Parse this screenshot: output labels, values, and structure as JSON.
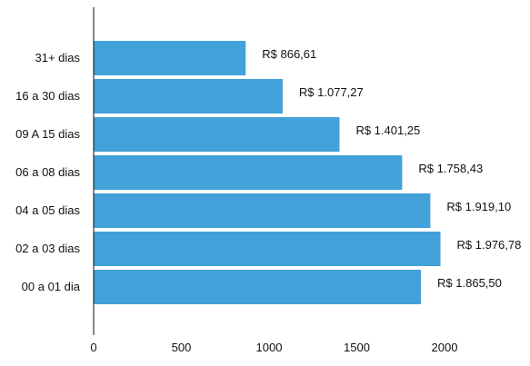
{
  "chart_data": {
    "type": "bar",
    "orientation": "horizontal",
    "categories": [
      "31+ dias",
      "16 a 30 dias",
      "09 A 15 dias",
      "06 a 08 dias",
      "04 a 05 dias",
      "02 a 03 dias",
      "00 a 01 dia"
    ],
    "values": [
      866.61,
      1077.27,
      1401.25,
      1758.43,
      1919.1,
      1976.78,
      1865.5
    ],
    "data_labels": [
      "R$ 866,61",
      "R$ 1.077,27",
      "R$ 1.401,25",
      "R$ 1.758,43",
      "R$ 1.919,10",
      "R$ 1.976,78",
      "R$ 1.865,50"
    ],
    "xlim": [
      0,
      2000
    ],
    "x_ticks": [
      0,
      500,
      1000,
      1500,
      2000
    ],
    "x_tick_labels": [
      "0",
      "500",
      "1000",
      "1500",
      "2000"
    ],
    "grid": false,
    "legend": "none",
    "bar_color": "#42a1d8"
  }
}
